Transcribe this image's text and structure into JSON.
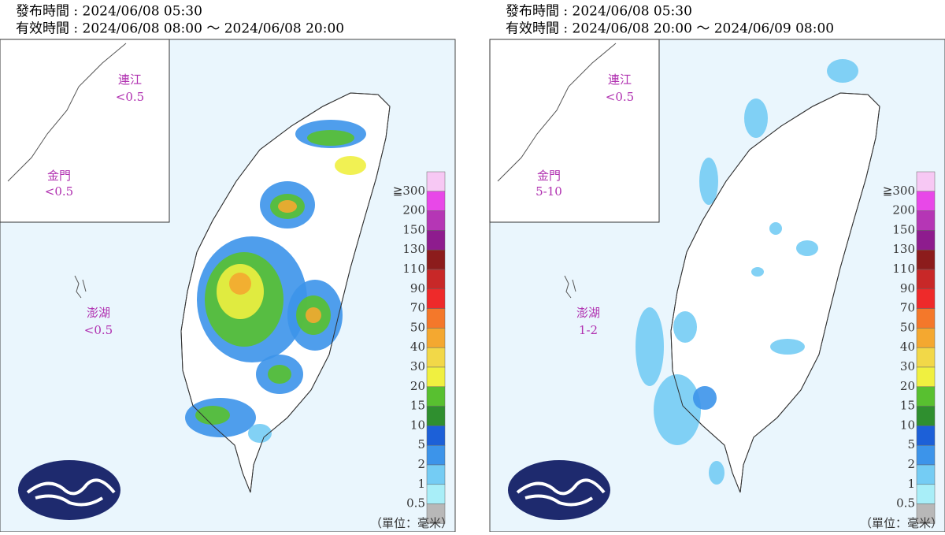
{
  "panels": [
    {
      "issued": "發布時間 : 2024/06/08 05:30",
      "valid": "有效時間 : 2024/06/08 08:00 ～ 2024/06/08 20:00",
      "regions": [
        {
          "name": "連江",
          "value": "<0.5"
        },
        {
          "name": "金門",
          "value": "<0.5"
        },
        {
          "name": "澎湖",
          "value": "<0.5"
        }
      ]
    },
    {
      "issued": "發布時間 : 2024/06/08 05:30",
      "valid": "有效時間 : 2024/06/08 20:00 ～ 2024/06/09 08:00",
      "regions": [
        {
          "name": "連江",
          "value": "<0.5"
        },
        {
          "name": "金門",
          "value": "5-10"
        },
        {
          "name": "澎湖",
          "value": "1-2"
        }
      ]
    }
  ],
  "legend": {
    "labels": [
      "≧300",
      "200",
      "150",
      "130",
      "110",
      "90",
      "70",
      "50",
      "40",
      "30",
      "20",
      "15",
      "10",
      "5",
      "2",
      "1",
      "0.5"
    ],
    "colors": [
      "#f7c8f4",
      "#e848e8",
      "#b536b5",
      "#8e1c8e",
      "#8c1c1c",
      "#c82828",
      "#ee2a2a",
      "#f4782a",
      "#f4a830",
      "#f2d848",
      "#f0f040",
      "#58c030",
      "#2f8f2f",
      "#1c60d8",
      "#3c94ea",
      "#74ccf4",
      "#a8eef8",
      "#b8b8b8"
    ],
    "unit": "（單位：毫米）"
  }
}
